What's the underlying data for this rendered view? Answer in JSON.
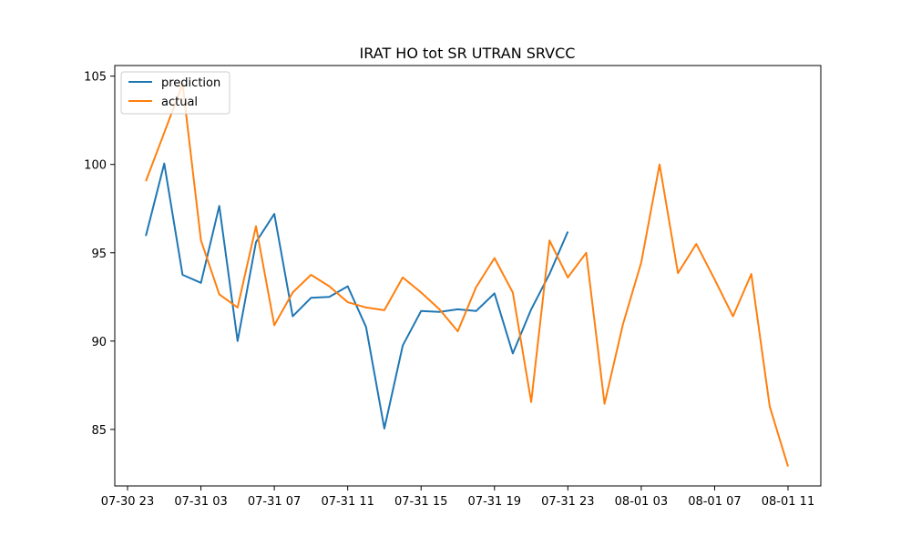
{
  "chart_data": {
    "type": "line",
    "title": "IRAT HO tot SR UTRAN SRVCC",
    "xlabel": "",
    "ylabel": "",
    "x": [
      "07-31 00",
      "07-31 01",
      "07-31 02",
      "07-31 03",
      "07-31 04",
      "07-31 05",
      "07-31 06",
      "07-31 07",
      "07-31 08",
      "07-31 09",
      "07-31 10",
      "07-31 11",
      "07-31 12",
      "07-31 13",
      "07-31 14",
      "07-31 15",
      "07-31 16",
      "07-31 17",
      "07-31 18",
      "07-31 19",
      "07-31 20",
      "07-31 21",
      "07-31 22",
      "07-31 23",
      "08-01 00",
      "08-01 01",
      "08-01 02",
      "08-01 03",
      "08-01 04",
      "08-01 05",
      "08-01 06",
      "08-01 07",
      "08-01 08",
      "08-01 09",
      "08-01 10",
      "08-01 11"
    ],
    "series": [
      {
        "name": "prediction",
        "color": "#1f77b4",
        "values": [
          95.95,
          100.05,
          93.75,
          93.3,
          97.65,
          90.0,
          95.6,
          97.2,
          91.4,
          92.45,
          92.5,
          93.1,
          90.8,
          85.05,
          89.75,
          91.7,
          91.65,
          91.8,
          91.7,
          92.7,
          89.3,
          91.8,
          93.8,
          96.2,
          null,
          null,
          null,
          null,
          null,
          null,
          null,
          null,
          null,
          null,
          null,
          null
        ]
      },
      {
        "name": "actual",
        "color": "#ff7f0e",
        "values": [
          99.05,
          101.8,
          104.55,
          95.7,
          92.65,
          91.9,
          96.5,
          90.9,
          92.75,
          93.75,
          93.1,
          92.2,
          91.9,
          91.75,
          93.6,
          92.75,
          91.8,
          90.55,
          93.05,
          94.7,
          92.75,
          86.55,
          95.7,
          93.6,
          95.0,
          86.45,
          90.95,
          94.45,
          100.0,
          93.85,
          95.5,
          93.5,
          91.4,
          93.8,
          86.3,
          82.9
        ]
      }
    ],
    "x_ticks": [
      {
        "at": "07-30 23",
        "label": "07-30 23"
      },
      {
        "at": "07-31 03",
        "label": "07-31 03"
      },
      {
        "at": "07-31 07",
        "label": "07-31 07"
      },
      {
        "at": "07-31 11",
        "label": "07-31 11"
      },
      {
        "at": "07-31 15",
        "label": "07-31 15"
      },
      {
        "at": "07-31 19",
        "label": "07-31 19"
      },
      {
        "at": "07-31 23",
        "label": "07-31 23"
      },
      {
        "at": "08-01 03",
        "label": "08-01 03"
      },
      {
        "at": "08-01 07",
        "label": "08-01 07"
      },
      {
        "at": "08-01 11",
        "label": "08-01 11"
      }
    ],
    "y_ticks": [
      85,
      90,
      95,
      100,
      105
    ],
    "xlim": [
      "07-30 22",
      "08-01 12"
    ],
    "ylim": [
      81.8,
      105.6
    ],
    "grid": false,
    "legend_position": "top-left"
  }
}
